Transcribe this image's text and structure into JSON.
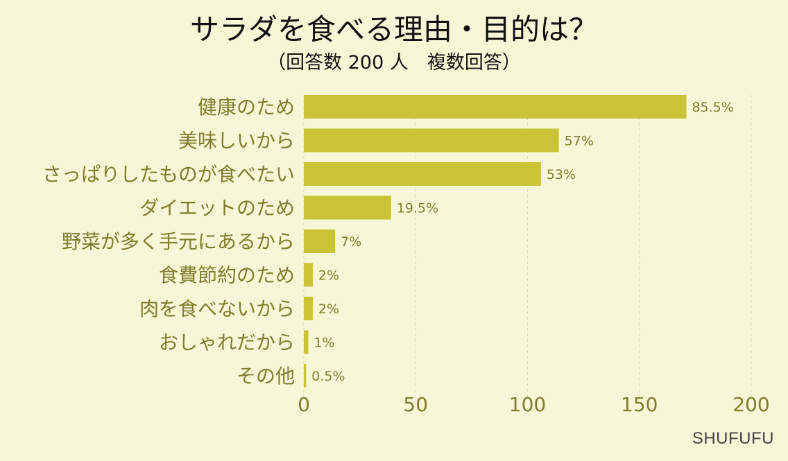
{
  "chart_data": {
    "type": "bar",
    "orientation": "horizontal",
    "title": "サラダを食べる理由・目的は？",
    "subtitle": "（回答数 200 人　複数回答）",
    "categories": [
      "健康のため",
      "美味しいから",
      "さっぱりしたものが食べたい",
      "ダイエットのため",
      "野菜が多く手元にあるから",
      "食費節約のため",
      "肉を食べないから",
      "おしゃれだから",
      "その他"
    ],
    "values": [
      171,
      114,
      106,
      39,
      14,
      4,
      4,
      2,
      1
    ],
    "data_labels": [
      "85.5%",
      "57%",
      "53%",
      "19.5%",
      "7%",
      "2%",
      "2%",
      "1%",
      "0.5%"
    ],
    "xlim": [
      0,
      200
    ],
    "x_ticks": [
      0,
      50,
      100,
      150,
      200
    ],
    "x_tick_labels": [
      "0",
      "50",
      "100",
      "150",
      "200"
    ],
    "grid": "vertical dashed",
    "colors": {
      "bar": "#c9c335",
      "background": "#f7f6d7",
      "label": "#7f7d2d",
      "grid": "#ddd9b5",
      "title": "#111111"
    }
  },
  "branding": {
    "watermark": "SHUFUFU"
  }
}
